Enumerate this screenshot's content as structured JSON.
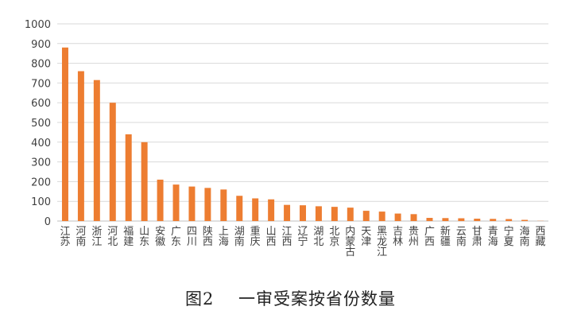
{
  "caption": "图2    一审受案按省份数量",
  "colors": {
    "bar": "#ED7D31",
    "grid": "#D9D9D9",
    "axis": "#BFBFBF",
    "text": "#404040"
  },
  "chart_data": {
    "type": "bar",
    "categories": [
      "江苏",
      "河南",
      "浙江",
      "河北",
      "福建",
      "山东",
      "安徽",
      "广东",
      "四川",
      "陕西",
      "上海",
      "湖南",
      "重庆",
      "山西",
      "江西",
      "辽宁",
      "湖北",
      "北京",
      "内蒙古",
      "天津",
      "黑龙江",
      "吉林",
      "贵州",
      "广西",
      "新疆",
      "云南",
      "甘肃",
      "青海",
      "宁夏",
      "海南",
      "西藏"
    ],
    "values": [
      880,
      760,
      715,
      600,
      440,
      400,
      210,
      185,
      175,
      168,
      160,
      128,
      115,
      110,
      82,
      80,
      75,
      72,
      68,
      52,
      48,
      38,
      35,
      16,
      15,
      14,
      12,
      11,
      10,
      6,
      1
    ],
    "y_ticks": [
      0,
      100,
      200,
      300,
      400,
      500,
      600,
      700,
      800,
      900,
      1000
    ],
    "ylim": [
      0,
      1000
    ],
    "grid": true,
    "legend": "none"
  }
}
